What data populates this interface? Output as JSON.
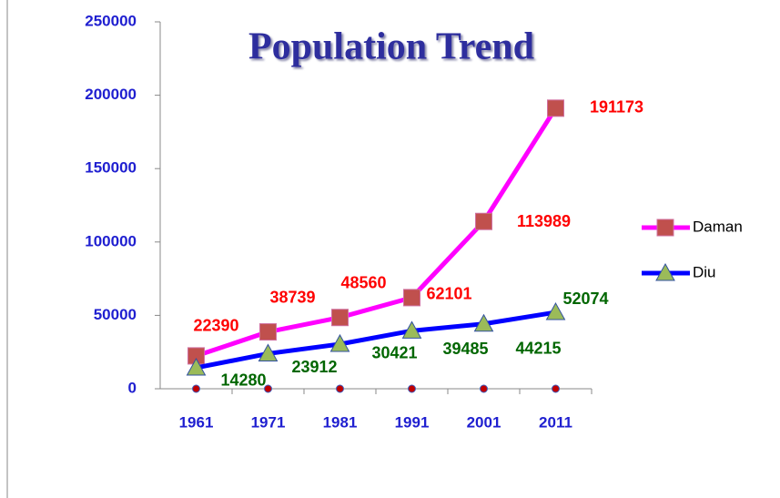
{
  "chart_data": {
    "type": "line",
    "title": "Population Trend",
    "categories": [
      "1961",
      "1971",
      "1981",
      "1991",
      "2001",
      "2011"
    ],
    "series": [
      {
        "name": "Daman",
        "color": "#ff00ff",
        "marker": "square",
        "marker_color": "#c0504d",
        "label_color": "#ff0000",
        "values": [
          22390,
          38739,
          48560,
          62101,
          113989,
          191173
        ]
      },
      {
        "name": "Diu",
        "color": "#0000ff",
        "marker": "triangle",
        "marker_color": "#9bbb59",
        "label_color": "#006600",
        "values": [
          14280,
          23912,
          30421,
          39485,
          44215,
          52074
        ]
      },
      {
        "color": "#c00000",
        "marker": "circle",
        "line": false,
        "values": [
          0,
          0,
          0,
          0,
          0,
          0
        ]
      }
    ],
    "ylim": [
      0,
      250000
    ],
    "yticks": [
      0,
      50000,
      100000,
      150000,
      200000,
      250000
    ],
    "grid": false,
    "legend": "right"
  }
}
